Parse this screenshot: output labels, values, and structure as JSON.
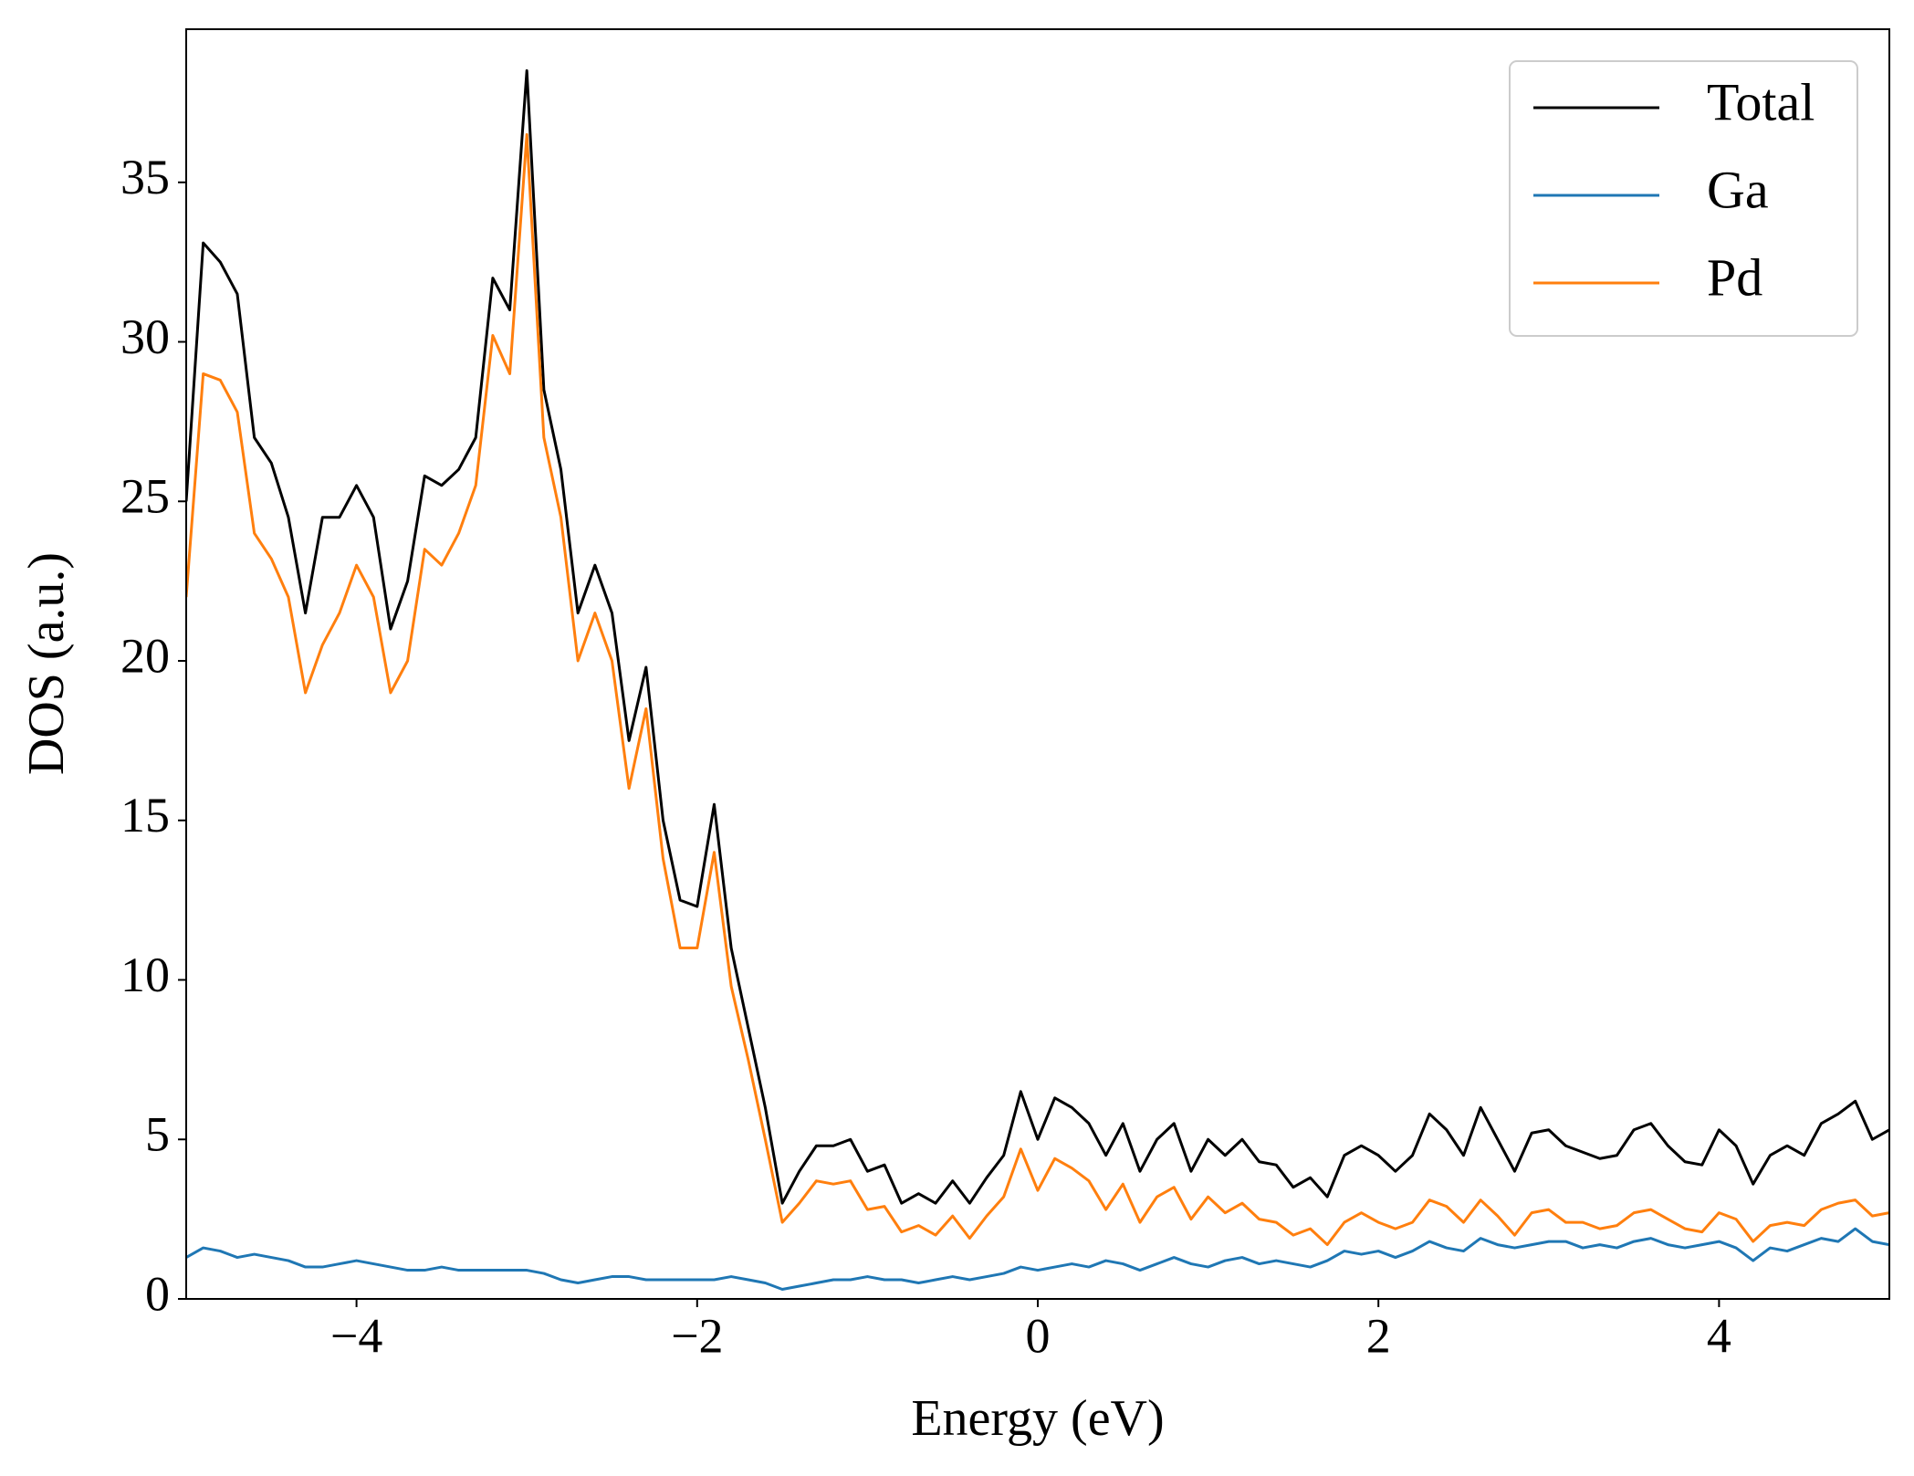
{
  "chart_data": {
    "type": "line",
    "xlabel": "Energy (eV)",
    "ylabel": "DOS (a.u.)",
    "x": [
      -5.0,
      -4.9,
      -4.8,
      -4.7,
      -4.6,
      -4.5,
      -4.4,
      -4.3,
      -4.2,
      -4.1,
      -4.0,
      -3.9,
      -3.8,
      -3.7,
      -3.6,
      -3.5,
      -3.4,
      -3.3,
      -3.2,
      -3.1,
      -3.0,
      -2.9,
      -2.8,
      -2.7,
      -2.6,
      -2.5,
      -2.4,
      -2.3,
      -2.2,
      -2.1,
      -2.0,
      -1.9,
      -1.8,
      -1.7,
      -1.6,
      -1.5,
      -1.4,
      -1.3,
      -1.2,
      -1.1,
      -1.0,
      -0.9,
      -0.8,
      -0.7,
      -0.6,
      -0.5,
      -0.4,
      -0.3,
      -0.2,
      -0.1,
      0.0,
      0.1,
      0.2,
      0.3,
      0.4,
      0.5,
      0.6,
      0.7,
      0.8,
      0.9,
      1.0,
      1.1,
      1.2,
      1.3,
      1.4,
      1.5,
      1.6,
      1.7,
      1.8,
      1.9,
      2.0,
      2.1,
      2.2,
      2.3,
      2.4,
      2.5,
      2.6,
      2.7,
      2.8,
      2.9,
      3.0,
      3.1,
      3.2,
      3.3,
      3.4,
      3.5,
      3.6,
      3.7,
      3.8,
      3.9,
      4.0,
      4.1,
      4.2,
      4.3,
      4.4,
      4.5,
      4.6,
      4.7,
      4.8,
      4.9,
      5.0
    ],
    "series": [
      {
        "name": "Total",
        "color": "#000000",
        "values": [
          25,
          33.1,
          32.5,
          31.5,
          27,
          26.2,
          24.5,
          21.5,
          24.5,
          24.5,
          25.5,
          24.5,
          21,
          22.5,
          25.8,
          25.5,
          26,
          27,
          32,
          31,
          38.5,
          28.5,
          26,
          21.5,
          23,
          21.5,
          17.5,
          19.8,
          15,
          12.5,
          12.3,
          15.5,
          11,
          8.5,
          6,
          3,
          4,
          4.8,
          4.8,
          5,
          4,
          4.2,
          3,
          3.3,
          3,
          3.7,
          3,
          3.8,
          4.5,
          6.5,
          5,
          6.3,
          6,
          5.5,
          4.5,
          5.5,
          4,
          5,
          5.5,
          4,
          5,
          4.5,
          5,
          4.3,
          4.2,
          3.5,
          3.8,
          3.2,
          4.5,
          4.8,
          4.5,
          4,
          4.5,
          5.8,
          5.3,
          4.5,
          6,
          5,
          4,
          5.2,
          5.3,
          4.8,
          4.6,
          4.4,
          4.5,
          5.3,
          5.5,
          4.8,
          4.3,
          4.2,
          5.3,
          4.8,
          3.6,
          4.5,
          4.8,
          4.5,
          5.5,
          5.8,
          6.2,
          5,
          5.3
        ]
      },
      {
        "name": "Ga",
        "color": "#1f77b4",
        "values": [
          1.3,
          1.6,
          1.5,
          1.3,
          1.4,
          1.3,
          1.2,
          1.0,
          1.0,
          1.1,
          1.2,
          1.1,
          1.0,
          0.9,
          0.9,
          1.0,
          0.9,
          0.9,
          0.9,
          0.9,
          0.9,
          0.8,
          0.6,
          0.5,
          0.6,
          0.7,
          0.7,
          0.6,
          0.6,
          0.6,
          0.6,
          0.6,
          0.7,
          0.6,
          0.5,
          0.3,
          0.4,
          0.5,
          0.6,
          0.6,
          0.7,
          0.6,
          0.6,
          0.5,
          0.6,
          0.7,
          0.6,
          0.7,
          0.8,
          1.0,
          0.9,
          1.0,
          1.1,
          1.0,
          1.2,
          1.1,
          0.9,
          1.1,
          1.3,
          1.1,
          1.0,
          1.2,
          1.3,
          1.1,
          1.2,
          1.1,
          1.0,
          1.2,
          1.5,
          1.4,
          1.5,
          1.3,
          1.5,
          1.8,
          1.6,
          1.5,
          1.9,
          1.7,
          1.6,
          1.7,
          1.8,
          1.8,
          1.6,
          1.7,
          1.6,
          1.8,
          1.9,
          1.7,
          1.6,
          1.7,
          1.8,
          1.6,
          1.2,
          1.6,
          1.5,
          1.7,
          1.9,
          1.8,
          2.2,
          1.8,
          1.7
        ]
      },
      {
        "name": "Pd",
        "color": "#ff7f0e",
        "values": [
          22,
          29,
          28.8,
          27.8,
          24,
          23.2,
          22,
          19,
          20.5,
          21.5,
          23,
          22,
          19,
          20,
          23.5,
          23,
          24,
          25.5,
          30.2,
          29,
          36.5,
          27,
          24.5,
          20,
          21.5,
          20,
          16,
          18.5,
          13.8,
          11,
          11,
          14,
          9.8,
          7.5,
          5,
          2.4,
          3,
          3.7,
          3.6,
          3.7,
          2.8,
          2.9,
          2.1,
          2.3,
          2.0,
          2.6,
          1.9,
          2.6,
          3.2,
          4.7,
          3.4,
          4.4,
          4.1,
          3.7,
          2.8,
          3.6,
          2.4,
          3.2,
          3.5,
          2.5,
          3.2,
          2.7,
          3.0,
          2.5,
          2.4,
          2.0,
          2.2,
          1.7,
          2.4,
          2.7,
          2.4,
          2.2,
          2.4,
          3.1,
          2.9,
          2.4,
          3.1,
          2.6,
          2.0,
          2.7,
          2.8,
          2.4,
          2.4,
          2.2,
          2.3,
          2.7,
          2.8,
          2.5,
          2.2,
          2.1,
          2.7,
          2.5,
          1.8,
          2.3,
          2.4,
          2.3,
          2.8,
          3.0,
          3.1,
          2.6,
          2.7
        ]
      }
    ],
    "xlim": [
      -5,
      5
    ],
    "ylim": [
      0,
      39.8
    ],
    "xticks": [
      {
        "value": -4,
        "label": "−4"
      },
      {
        "value": -2,
        "label": "−2"
      },
      0,
      2,
      4
    ],
    "yticks": [
      0,
      5,
      10,
      15,
      20,
      25,
      30,
      35
    ],
    "legend": "upper right",
    "grid": false
  }
}
